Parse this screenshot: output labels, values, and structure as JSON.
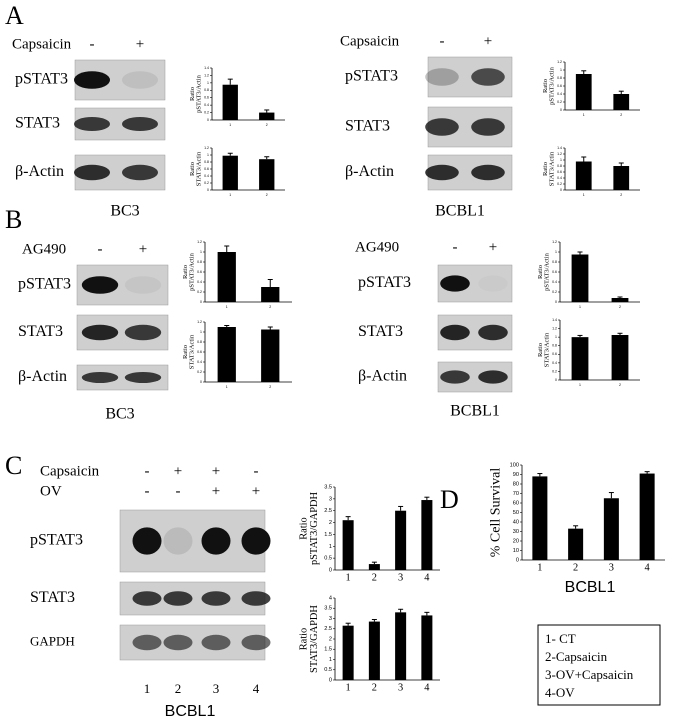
{
  "panels": [
    {
      "label": "A",
      "groups": [
        {
          "treatments": [
            {
              "name": "Capsaicin",
              "signs": [
                "-",
                "+"
              ]
            }
          ],
          "rows": [
            "pSTAT3",
            "STAT3",
            "β-Actin"
          ],
          "cell_line": "BC3",
          "charts": [
            {
              "type": "bar",
              "ylabel": [
                "Ratio",
                "pSTAT3/Actin"
              ],
              "categories": [
                "1",
                "2"
              ],
              "values": [
                0.95,
                0.2
              ],
              "errors": [
                0.15,
                0.07
              ],
              "ylim": [
                0,
                1.4
              ],
              "yticks": [
                0,
                0.2,
                0.4,
                0.6,
                0.8,
                1,
                1.2,
                1.4
              ]
            },
            {
              "type": "bar",
              "ylabel": [
                "Ratio",
                "STAT3/Actin"
              ],
              "categories": [
                "1",
                "2"
              ],
              "values": [
                0.98,
                0.88
              ],
              "errors": [
                0.07,
                0.07
              ],
              "ylim": [
                0,
                1.2
              ],
              "yticks": [
                0,
                0.2,
                0.4,
                0.6,
                0.8,
                1,
                1.2
              ]
            }
          ]
        },
        {
          "treatments": [
            {
              "name": "Capsaicin",
              "signs": [
                "-",
                "+"
              ]
            }
          ],
          "rows": [
            "pSTAT3",
            "STAT3",
            "β-Actin"
          ],
          "cell_line": "BCBL1",
          "charts": [
            {
              "type": "bar",
              "ylabel": [
                "Ratio",
                "pSTAT3/Actin"
              ],
              "categories": [
                "1",
                "2"
              ],
              "values": [
                0.9,
                0.4
              ],
              "errors": [
                0.08,
                0.07
              ],
              "ylim": [
                0,
                1.2
              ],
              "yticks": [
                0,
                0.2,
                0.4,
                0.6,
                0.8,
                1,
                1.2
              ]
            },
            {
              "type": "bar",
              "ylabel": [
                "Ratio",
                "STAT3/Actin"
              ],
              "categories": [
                "1",
                "2"
              ],
              "values": [
                0.95,
                0.8
              ],
              "errors": [
                0.15,
                0.1
              ],
              "ylim": [
                0,
                1.4
              ],
              "yticks": [
                0,
                0.2,
                0.4,
                0.6,
                0.8,
                1,
                1.2,
                1.4
              ]
            }
          ]
        }
      ]
    },
    {
      "label": "B",
      "groups": [
        {
          "treatments": [
            {
              "name": "AG490",
              "signs": [
                "-",
                "+"
              ]
            }
          ],
          "rows": [
            "pSTAT3",
            "STAT3",
            "β-Actin"
          ],
          "cell_line": "BC3",
          "charts": [
            {
              "type": "bar",
              "ylabel": [
                "Ratio",
                "pSTAT3/Actin"
              ],
              "categories": [
                "1",
                "2"
              ],
              "values": [
                1.0,
                0.3
              ],
              "errors": [
                0.12,
                0.15
              ],
              "ylim": [
                0,
                1.2
              ],
              "yticks": [
                0,
                0.2,
                0.4,
                0.6,
                0.8,
                1,
                1.2
              ]
            },
            {
              "type": "bar",
              "ylabel": [
                "Ratio",
                "STAT3/Actin"
              ],
              "categories": [
                "1",
                "2"
              ],
              "values": [
                1.1,
                1.05
              ],
              "errors": [
                0.03,
                0.05
              ],
              "ylim": [
                0,
                1.2
              ],
              "yticks": [
                0,
                0.2,
                0.4,
                0.6,
                0.8,
                1,
                1.2
              ]
            }
          ]
        },
        {
          "treatments": [
            {
              "name": "AG490",
              "signs": [
                "-",
                "+"
              ]
            }
          ],
          "rows": [
            "pSTAT3",
            "STAT3",
            "β-Actin"
          ],
          "cell_line": "BCBL1",
          "charts": [
            {
              "type": "bar",
              "ylabel": [
                "Ratio",
                "pSTAT3/Actin"
              ],
              "categories": [
                "1",
                "2"
              ],
              "values": [
                0.95,
                0.08
              ],
              "errors": [
                0.05,
                0.02
              ],
              "ylim": [
                0,
                1.2
              ],
              "yticks": [
                0,
                0.2,
                0.4,
                0.6,
                0.8,
                1,
                1.2
              ]
            },
            {
              "type": "bar",
              "ylabel": [
                "Ratio",
                "STAT3/Actin"
              ],
              "categories": [
                "1",
                "2"
              ],
              "values": [
                1.0,
                1.05
              ],
              "errors": [
                0.04,
                0.04
              ],
              "ylim": [
                0,
                1.4
              ],
              "yticks": [
                0,
                0.2,
                0.4,
                0.6,
                0.8,
                1,
                1.2,
                1.4
              ]
            }
          ]
        }
      ]
    },
    {
      "label": "C",
      "groups": [
        {
          "treatments": [
            {
              "name": "Capsaicin",
              "signs": [
                "-",
                "+",
                "+",
                "-"
              ]
            },
            {
              "name": "OV",
              "signs": [
                "-",
                "-",
                "+",
                "+"
              ]
            }
          ],
          "rows": [
            "pSTAT3",
            "STAT3",
            "GAPDH"
          ],
          "lanes": [
            "1",
            "2",
            "3",
            "4"
          ],
          "cell_line": "BCBL1",
          "charts": [
            {
              "type": "bar",
              "ylabel": [
                "Ratio",
                "pSTAT3/GAPDH"
              ],
              "categories": [
                "1",
                "2",
                "3",
                "4"
              ],
              "values": [
                2.1,
                0.25,
                2.5,
                2.95
              ],
              "errors": [
                0.15,
                0.08,
                0.18,
                0.12
              ],
              "ylim": [
                0,
                3.5
              ],
              "yticks": [
                0,
                0.5,
                1,
                1.5,
                2,
                2.5,
                3,
                3.5
              ]
            },
            {
              "type": "bar",
              "ylabel": [
                "Ratio",
                "STAT3/GAPDH"
              ],
              "categories": [
                "1",
                "2",
                "3",
                "4"
              ],
              "values": [
                2.65,
                2.85,
                3.3,
                3.15
              ],
              "errors": [
                0.12,
                0.1,
                0.15,
                0.15
              ],
              "ylim": [
                0,
                4
              ],
              "yticks": [
                0,
                0.5,
                1,
                1.5,
                2,
                2.5,
                3,
                3.5,
                4
              ]
            }
          ]
        }
      ]
    },
    {
      "label": "D",
      "cell_line": "BCBL1",
      "legend": [
        "1- CT",
        "2-Capsaicin",
        "3-OV+Capsaicin",
        "4-OV"
      ],
      "charts": [
        {
          "type": "bar",
          "ylabel": [
            "% Cell Survival"
          ],
          "categories": [
            "1",
            "2",
            "3",
            "4"
          ],
          "values": [
            88,
            33,
            65,
            91
          ],
          "errors": [
            3,
            3,
            6,
            2
          ],
          "ylim": [
            0,
            100
          ],
          "yticks": [
            0,
            10,
            20,
            30,
            40,
            50,
            60,
            70,
            80,
            90,
            100
          ]
        }
      ]
    }
  ]
}
